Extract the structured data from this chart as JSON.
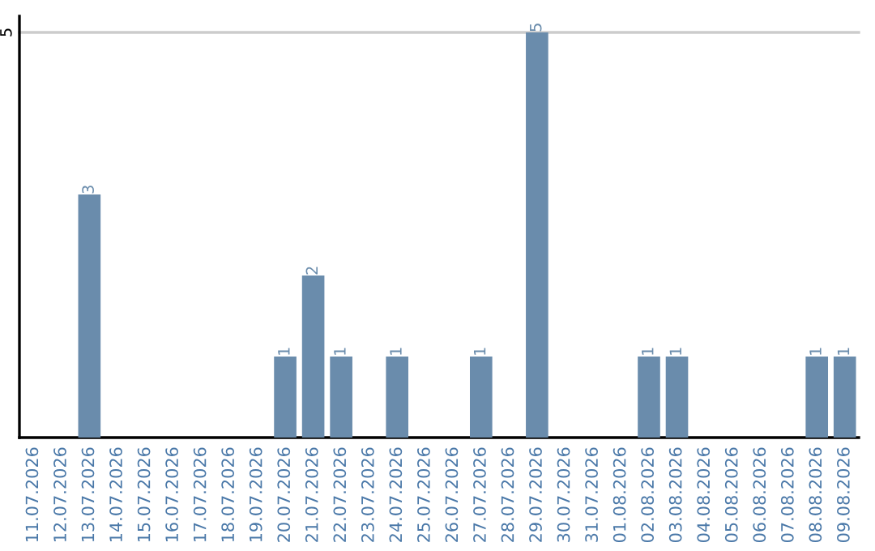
{
  "chart_data": {
    "type": "bar",
    "categories": [
      "11.07.2026",
      "12.07.2026",
      "13.07.2026",
      "14.07.2026",
      "15.07.2026",
      "16.07.2026",
      "17.07.2026",
      "18.07.2026",
      "19.07.2026",
      "20.07.2026",
      "21.07.2026",
      "22.07.2026",
      "23.07.2026",
      "24.07.2026",
      "25.07.2026",
      "26.07.2026",
      "27.07.2026",
      "28.07.2026",
      "29.07.2026",
      "30.07.2026",
      "31.07.2026",
      "01.08.2026",
      "02.08.2026",
      "03.08.2026",
      "04.08.2026",
      "05.08.2026",
      "06.08.2026",
      "07.08.2026",
      "08.08.2026",
      "09.08.2026"
    ],
    "values": [
      0,
      0,
      3,
      0,
      0,
      0,
      0,
      0,
      0,
      1,
      2,
      1,
      0,
      1,
      0,
      0,
      1,
      0,
      5,
      0,
      0,
      0,
      1,
      1,
      0,
      0,
      0,
      0,
      1,
      1
    ],
    "value_labels": [
      null,
      null,
      "3",
      null,
      null,
      null,
      null,
      null,
      null,
      "1",
      "2",
      "1",
      null,
      "1",
      null,
      null,
      "1",
      null,
      "5",
      null,
      null,
      null,
      "1",
      "1",
      null,
      null,
      null,
      null,
      "1",
      "1"
    ],
    "color": "#6a8cac",
    "ylim": [
      0,
      5.2
    ],
    "yticks": [
      5
    ],
    "grid": "y"
  }
}
